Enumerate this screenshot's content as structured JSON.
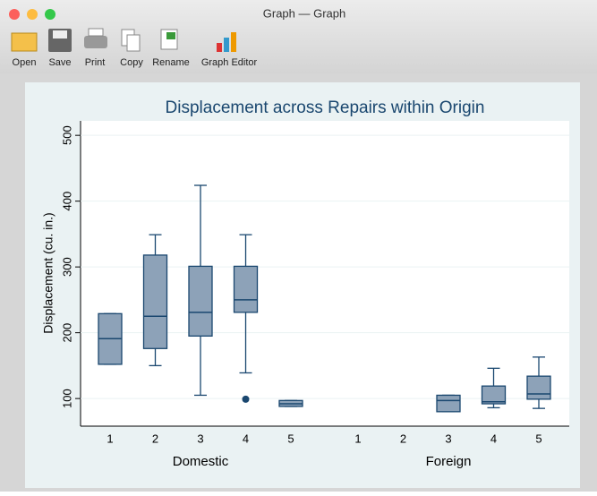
{
  "window": {
    "title": "Graph — Graph"
  },
  "toolbar": {
    "buttons": [
      "Open",
      "Save",
      "Print",
      "Copy",
      "Rename",
      "Graph Editor"
    ]
  },
  "chart_data": {
    "type": "box",
    "title": "Displacement across Repairs within Origin",
    "y_label": "Displacement (cu. in.)",
    "ylim": [
      58,
      522
    ],
    "yticks": [
      100,
      200,
      300,
      400,
      500
    ],
    "grid": true,
    "color": "#8da2b8",
    "line_color": "#1a476f",
    "groups": [
      {
        "name": "Domestic",
        "categories": [
          "1",
          "2",
          "3",
          "4",
          "5"
        ],
        "boxes": [
          {
            "min": 152,
            "q1": 152,
            "median": 191,
            "q3": 229,
            "max": 229,
            "outliers": []
          },
          {
            "min": 150,
            "q1": 176,
            "median": 225,
            "q3": 318,
            "max": 349,
            "outliers": []
          },
          {
            "min": 105,
            "q1": 195,
            "median": 231,
            "q3": 301,
            "max": 424,
            "outliers": []
          },
          {
            "min": 139,
            "q1": 231,
            "median": 250,
            "q3": 301,
            "max": 349,
            "outliers": [
              99
            ]
          },
          {
            "min": 88,
            "q1": 88,
            "median": 92,
            "q3": 97,
            "max": 97,
            "outliers": []
          }
        ]
      },
      {
        "name": "Foreign",
        "categories": [
          "1",
          "2",
          "3",
          "4",
          "5"
        ],
        "boxes": [
          null,
          null,
          {
            "min": 80,
            "q1": 80,
            "median": 97,
            "q3": 105,
            "max": 105,
            "outliers": []
          },
          {
            "min": 86,
            "q1": 92,
            "median": 95,
            "q3": 119,
            "max": 146,
            "outliers": []
          },
          {
            "min": 85,
            "q1": 99,
            "median": 107,
            "q3": 134,
            "max": 163,
            "outliers": []
          }
        ]
      }
    ]
  }
}
